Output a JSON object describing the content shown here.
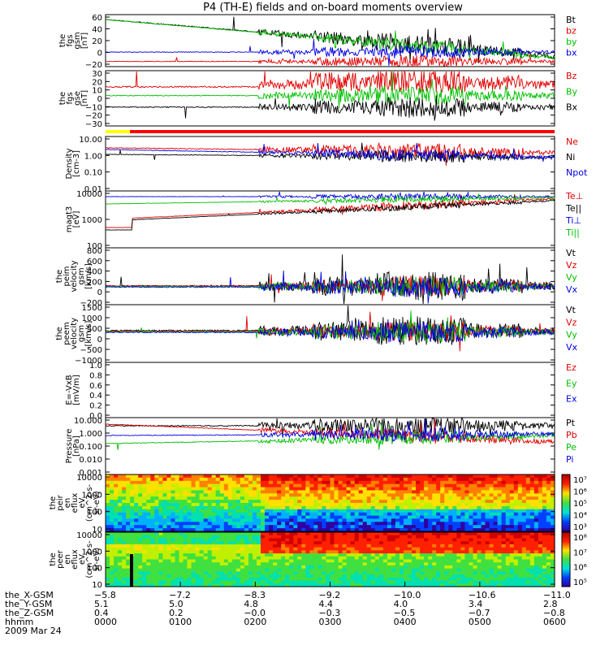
{
  "title": "P4 (TH-E) fields and on-board moments overview",
  "colors": {
    "black": "#000000",
    "red": "#e00000",
    "green": "#00c000",
    "blue": "#0000e0"
  },
  "chart_data": [
    {
      "type": "line",
      "ylabel": [
        "the",
        "fgs",
        "gsm",
        "[nT]"
      ],
      "yticks": [
        "60",
        "40",
        "20",
        "0",
        "−20"
      ],
      "ylim": [
        -20,
        60
      ],
      "legend": [
        {
          "name": "Bt",
          "color": "black"
        },
        {
          "name": "bz",
          "color": "red"
        },
        {
          "name": "by",
          "color": "green"
        },
        {
          "name": "bx",
          "color": "blue"
        }
      ]
    },
    {
      "type": "line",
      "ylabel": [
        "the",
        "fgs",
        "gse",
        "[nT]"
      ],
      "yticks": [
        "30",
        "20",
        "10",
        "0",
        "−10",
        "−20",
        "−30"
      ],
      "ylim": [
        -30,
        30
      ],
      "legend": [
        {
          "name": "Bz",
          "color": "red"
        },
        {
          "name": "By",
          "color": "green"
        },
        {
          "name": "Bx",
          "color": "black"
        }
      ]
    },
    {
      "type": "line",
      "ylabel": [
        "Density",
        "[cm-3]"
      ],
      "yticks": [
        "10.00",
        "1.00",
        "0.10",
        "0.01"
      ],
      "ylim": [
        0.01,
        10
      ],
      "scale": "log",
      "legend": [
        {
          "name": "Ne",
          "color": "red"
        },
        {
          "name": "Ni",
          "color": "black"
        },
        {
          "name": "Npot",
          "color": "blue"
        }
      ]
    },
    {
      "type": "line",
      "ylabel": [
        "magt3",
        "[eV]"
      ],
      "yticks": [
        "10000",
        "1000",
        "100"
      ],
      "ylim": [
        40,
        12000
      ],
      "scale": "log",
      "legend": [
        {
          "name": "Te⊥",
          "color": "red"
        },
        {
          "name": "Te||",
          "color": "black"
        },
        {
          "name": "Ti⊥",
          "color": "blue"
        },
        {
          "name": "Ti||",
          "color": "green"
        }
      ]
    },
    {
      "type": "line",
      "ylabel": [
        "the",
        "peim",
        "velocity",
        "gsm",
        "[km/s]"
      ],
      "yticks": [
        "800",
        "600",
        "400",
        "200",
        "0",
        "−200"
      ],
      "ylim": [
        -200,
        800
      ],
      "legend": [
        {
          "name": "Vt",
          "color": "black"
        },
        {
          "name": "Vz",
          "color": "red"
        },
        {
          "name": "Vy",
          "color": "green"
        },
        {
          "name": "Vx",
          "color": "blue"
        }
      ]
    },
    {
      "type": "line",
      "ylabel": [
        "the",
        "peem",
        "velocity",
        "gsm",
        "[km/s]"
      ],
      "yticks": [
        "1500",
        "1000",
        "500",
        "0",
        "−500",
        "−1000"
      ],
      "ylim": [
        -1300,
        1500
      ],
      "legend": [
        {
          "name": "Vt",
          "color": "black"
        },
        {
          "name": "Vz",
          "color": "red"
        },
        {
          "name": "Vy",
          "color": "green"
        },
        {
          "name": "Vx",
          "color": "blue"
        }
      ]
    },
    {
      "type": "line",
      "ylabel": [
        "E=-VxB",
        "[mV/m]"
      ],
      "yticks": [
        "1.0",
        "0.8",
        "0.6",
        "0.4",
        "0.2",
        "0.0"
      ],
      "ylim": [
        0,
        1
      ],
      "legend": [
        {
          "name": "Ez",
          "color": "red"
        },
        {
          "name": "Ey",
          "color": "green"
        },
        {
          "name": "Ex",
          "color": "blue"
        }
      ]
    },
    {
      "type": "line",
      "ylabel": [
        "Pressure",
        "[nPa]"
      ],
      "yticks": [
        "10.000",
        "1.000",
        "0.100",
        "0.010",
        "0.001"
      ],
      "ylim": [
        0.001,
        10
      ],
      "scale": "log",
      "legend": [
        {
          "name": "Pt",
          "color": "black"
        },
        {
          "name": "Pb",
          "color": "red"
        },
        {
          "name": "Pe",
          "color": "green"
        },
        {
          "name": "Pi",
          "color": "blue"
        }
      ]
    },
    {
      "type": "heatmap",
      "ylabel": [
        "the",
        "peir",
        "en",
        "eflux",
        "eV",
        "(cm^2-s-",
        "sr-eV)"
      ],
      "yticks": [
        "10000",
        "1000",
        "100",
        "10"
      ],
      "ylim": [
        5,
        25000
      ],
      "scale": "log",
      "colorbar": [
        "10⁷",
        "10⁶",
        "10⁵",
        "10⁴",
        "10³"
      ]
    },
    {
      "type": "heatmap",
      "ylabel": [
        "the",
        "peer",
        "en",
        "eflux",
        "eV",
        "(cm^2-s-",
        "sr-eV)"
      ],
      "yticks": [
        "10000",
        "1000",
        "100",
        "10"
      ],
      "ylim": [
        8,
        25000
      ],
      "scale": "log",
      "colorbar": [
        "10⁸",
        "10⁷",
        "10⁶",
        "10⁵"
      ]
    }
  ],
  "ephemeris": {
    "labels": [
      "the_X-GSM",
      "the_Y-GSM",
      "the_Z-GSM",
      "hhmm",
      "2009 Mar 24"
    ],
    "rows": [
      [
        "−5.8",
        "−7.2",
        "−8.3",
        "−9.2",
        "−10.0",
        "−10.6",
        "−11.0"
      ],
      [
        "5.1",
        "5.0",
        "4.8",
        "4.4",
        "4.0",
        "3.4",
        "2.8"
      ],
      [
        "0.4",
        "0.2",
        "−0.0",
        "−0.3",
        "−0.5",
        "−0.7",
        "−0.8"
      ],
      [
        "0000",
        "0100",
        "0200",
        "0300",
        "0400",
        "0500",
        "0600"
      ]
    ]
  }
}
